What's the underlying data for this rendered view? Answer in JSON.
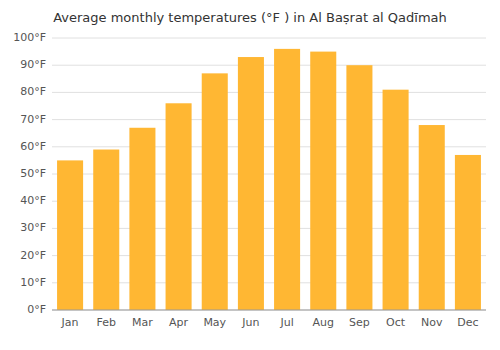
{
  "chart_data": {
    "type": "bar",
    "title": "Average monthly temperatures (°F ) in Al Baṣrat al Qadīmah",
    "categories": [
      "Jan",
      "Feb",
      "Mar",
      "Apr",
      "May",
      "Jun",
      "Jul",
      "Aug",
      "Sep",
      "Oct",
      "Nov",
      "Dec"
    ],
    "values": [
      55,
      59,
      67,
      76,
      87,
      93,
      96,
      95,
      90,
      81,
      68,
      57
    ],
    "color": "#FFB733",
    "ylim": [
      0,
      100
    ],
    "yticks": [
      {
        "value": 0,
        "label": "0°F"
      },
      {
        "value": 10,
        "label": "10°F"
      },
      {
        "value": 20,
        "label": "20°F"
      },
      {
        "value": 30,
        "label": "30°F"
      },
      {
        "value": 40,
        "label": "40°F"
      },
      {
        "value": 50,
        "label": "50°F"
      },
      {
        "value": 60,
        "label": "60°F"
      },
      {
        "value": 70,
        "label": "70°F"
      },
      {
        "value": 80,
        "label": "80°F"
      },
      {
        "value": 90,
        "label": "90°F"
      },
      {
        "value": 100,
        "label": "100°F"
      }
    ],
    "grid": true
  }
}
